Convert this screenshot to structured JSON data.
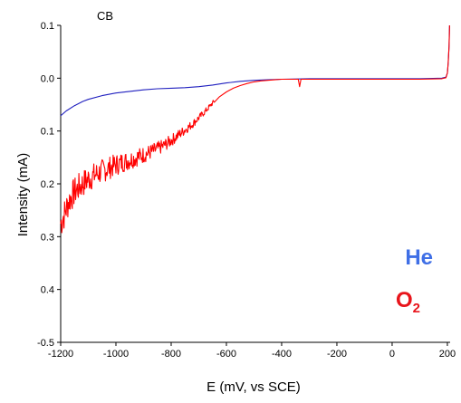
{
  "chart_data": {
    "type": "line",
    "panel_label": "CB",
    "xlabel": "E (mV, vs SCE)",
    "ylabel": "Intensity  (mA)",
    "xlim": [
      -1200,
      210
    ],
    "ylim": [
      -0.5,
      0.1
    ],
    "x_ticks": [
      -1200,
      -1000,
      -800,
      -600,
      -400,
      -200,
      0,
      200
    ],
    "y_ticks": [
      {
        "value": 0.1,
        "label": "0.1"
      },
      {
        "value": 0.0,
        "label": "0.0"
      },
      {
        "value": -0.1,
        "label": "0.1"
      },
      {
        "value": -0.2,
        "label": "0.2"
      },
      {
        "value": -0.3,
        "label": "0.3"
      },
      {
        "value": -0.4,
        "label": "0.4"
      },
      {
        "value": -0.5,
        "label": "-0.5"
      }
    ],
    "grid": false,
    "legend_placement": "bottom-right",
    "series": [
      {
        "name": "He",
        "color": "#1f1fbf",
        "legend_color": "#3f6fe6",
        "x": [
          -1200,
          -1180,
          -1150,
          -1120,
          -1100,
          -1050,
          -1000,
          -950,
          -900,
          -850,
          -800,
          -750,
          -700,
          -650,
          -600,
          -550,
          -500,
          -450,
          -400,
          -300,
          -200,
          -100,
          0,
          100,
          180,
          195,
          200,
          203,
          206,
          208
        ],
        "y": [
          -0.071,
          -0.062,
          -0.052,
          -0.044,
          -0.04,
          -0.033,
          -0.028,
          -0.025,
          -0.022,
          -0.02,
          -0.019,
          -0.018,
          -0.016,
          -0.013,
          -0.009,
          -0.006,
          -0.004,
          -0.003,
          -0.002,
          -0.001,
          -0.001,
          -0.001,
          -0.001,
          -0.001,
          0.0,
          0.002,
          0.01,
          0.03,
          0.06,
          0.1
        ]
      },
      {
        "name": "O2",
        "color": "#ff0000",
        "legend_color": "#e8141b",
        "noise_below_x": -640,
        "x": [
          -1200,
          -1185,
          -1170,
          -1150,
          -1125,
          -1100,
          -1075,
          -1050,
          -1025,
          -1000,
          -975,
          -950,
          -925,
          -900,
          -875,
          -850,
          -825,
          -800,
          -775,
          -750,
          -725,
          -700,
          -675,
          -650,
          -625,
          -600,
          -575,
          -550,
          -525,
          -500,
          -475,
          -450,
          -425,
          -400,
          -350,
          -340,
          -335,
          -330,
          -320,
          -300,
          -200,
          -100,
          0,
          100,
          180,
          195,
          200,
          203,
          206,
          208
        ],
        "y": [
          -0.275,
          -0.255,
          -0.232,
          -0.215,
          -0.202,
          -0.191,
          -0.183,
          -0.176,
          -0.17,
          -0.164,
          -0.159,
          -0.155,
          -0.15,
          -0.145,
          -0.14,
          -0.134,
          -0.127,
          -0.118,
          -0.108,
          -0.098,
          -0.088,
          -0.075,
          -0.062,
          -0.047,
          -0.035,
          -0.026,
          -0.019,
          -0.014,
          -0.01,
          -0.007,
          -0.005,
          -0.004,
          -0.003,
          -0.002,
          -0.002,
          -0.002,
          -0.016,
          -0.002,
          -0.002,
          -0.002,
          -0.002,
          -0.002,
          -0.002,
          -0.002,
          -0.001,
          0.001,
          0.01,
          0.03,
          0.06,
          0.1
        ]
      }
    ],
    "legend": {
      "he_label": "He",
      "o2_label_main": "O",
      "o2_label_sub": "2"
    }
  }
}
